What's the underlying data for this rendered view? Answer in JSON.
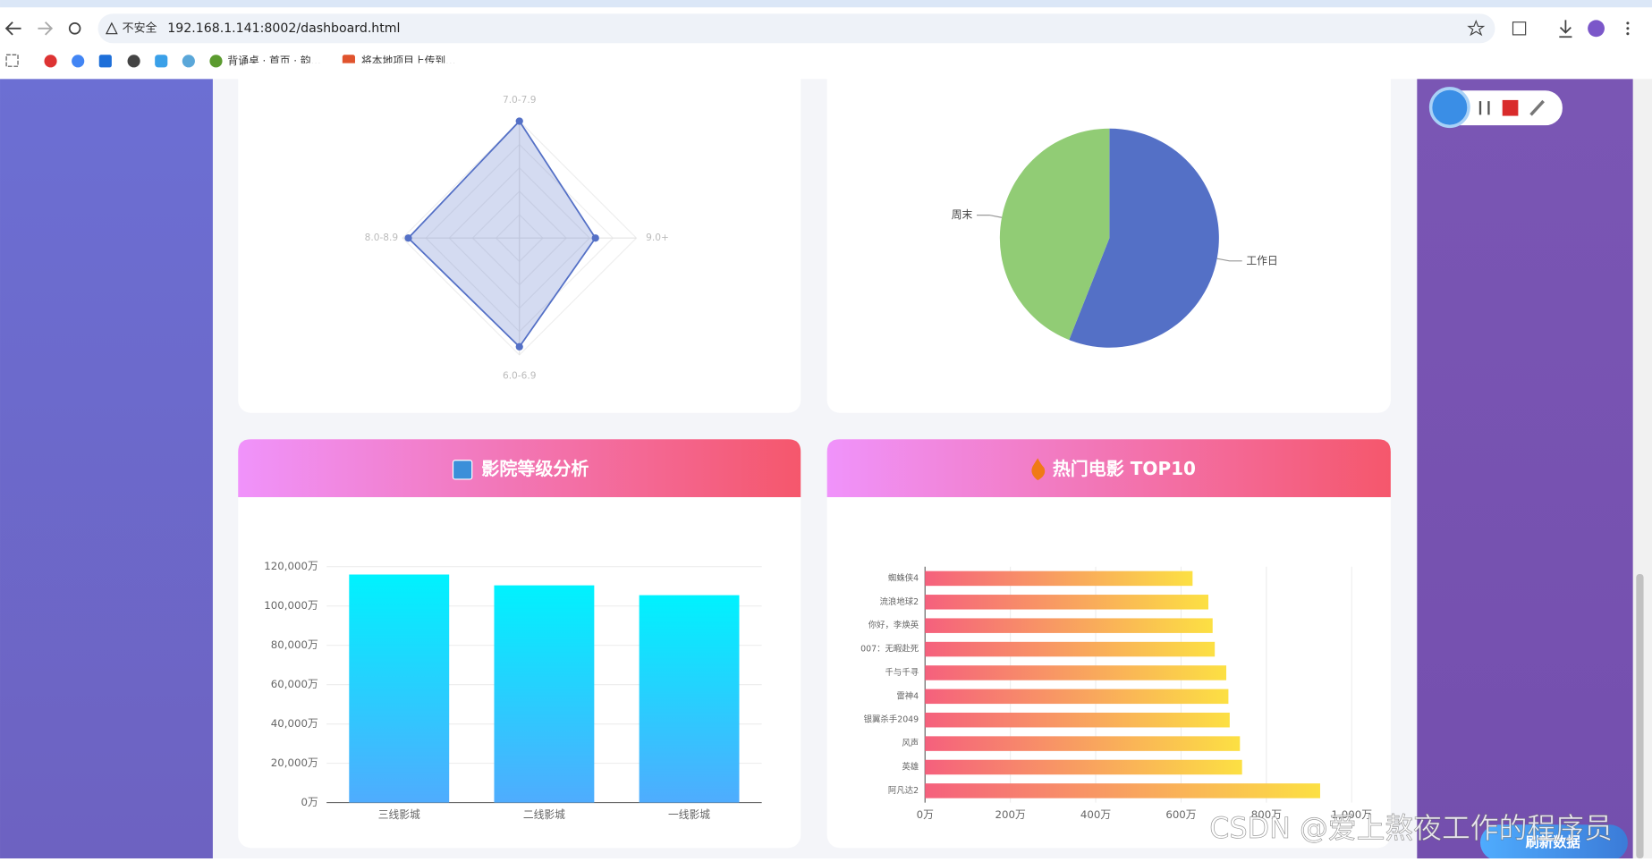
{
  "browser": {
    "security": "不安全",
    "url": "192.168.1.141:8002/dashboard.html",
    "bookmarks": [
      "背诵桌 · 首页 · 韵...",
      "将本地项目上传到..."
    ]
  },
  "chart_data": [
    {
      "type": "radar",
      "indicators": [
        "7.0-7.9",
        "9.0+",
        "6.0-6.9",
        "8.0-8.9"
      ],
      "values": [
        100,
        65,
        93,
        95
      ],
      "rlim": [
        0,
        100
      ],
      "color": "#5470c6"
    },
    {
      "type": "pie",
      "categories": [
        "工作日",
        "周末"
      ],
      "values": [
        56,
        44
      ],
      "colors": [
        "#5470c6",
        "#91cc75"
      ]
    },
    {
      "type": "bar",
      "title": "影院等级分析",
      "categories": [
        "三线影城",
        "二线影城",
        "一线影城"
      ],
      "values": [
        116000,
        110500,
        105500
      ],
      "ylim": [
        0,
        120000
      ],
      "yticks": [
        {
          "value": 0,
          "label": "0万"
        },
        {
          "value": 20000,
          "label": "20,000万"
        },
        {
          "value": 40000,
          "label": "40,000万"
        },
        {
          "value": 60000,
          "label": "60,000万"
        },
        {
          "value": 80000,
          "label": "80,000万"
        },
        {
          "value": 100000,
          "label": "100,000万"
        },
        {
          "value": 120000,
          "label": "120,000万"
        }
      ],
      "colors": [
        "#00f2fe",
        "#4facfe"
      ],
      "grid": true
    },
    {
      "type": "barh",
      "title": "热门电影 TOP10",
      "categories": [
        "蜘蛛侠4",
        "流浪地球2",
        "你好，李焕英",
        "007：无暇赴死",
        "千与千寻",
        "雷神4",
        "银翼杀手2049",
        "风声",
        "英雄",
        "阿凡达2"
      ],
      "values": [
        627,
        664,
        674,
        679,
        706,
        711,
        714,
        738,
        743,
        926
      ],
      "xlim": [
        0,
        1000
      ],
      "xticks": [
        {
          "value": 0,
          "label": "0万"
        },
        {
          "value": 200,
          "label": "200万"
        },
        {
          "value": 400,
          "label": "400万"
        },
        {
          "value": 600,
          "label": "600万"
        },
        {
          "value": 800,
          "label": "800万"
        },
        {
          "value": 1000,
          "label": "1,000万"
        }
      ],
      "colors": [
        "#f5607d",
        "#fce043"
      ],
      "grid": true
    }
  ],
  "refresh_button": "刷新数据",
  "watermark": "CSDN @爱上熬夜工作的程序员"
}
